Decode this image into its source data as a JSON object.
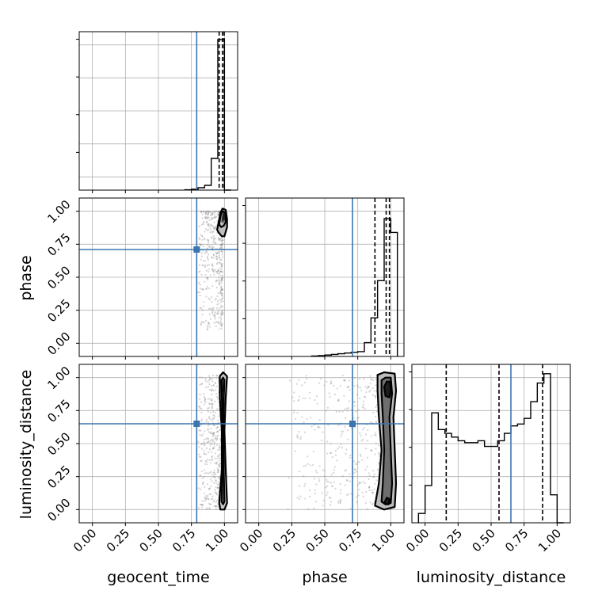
{
  "chart_data": {
    "type": "corner",
    "parameters": [
      "geocent_time",
      "phase",
      "luminosity_distance"
    ],
    "axis_labels": {
      "x": [
        "geocent_time",
        "phase",
        "luminosity_distance"
      ],
      "y": [
        "",
        "phase",
        "luminosity_distance"
      ]
    },
    "xlim": [
      -0.1,
      1.1
    ],
    "ylim": [
      -0.1,
      1.1
    ],
    "ticks": [
      0.0,
      0.25,
      0.5,
      0.75,
      1.0
    ],
    "tick_labels": [
      "0.00",
      "0.25",
      "0.50",
      "0.75",
      "1.00"
    ],
    "grid": true,
    "injection": {
      "geocent_time": 0.79,
      "phase": 0.71,
      "luminosity_distance": 0.65
    },
    "quantiles": {
      "geocent_time": [
        0.96,
        0.985,
        0.998
      ],
      "phase": [
        0.88,
        0.965,
        0.99
      ],
      "luminosity_distance": [
        0.16,
        0.56,
        0.89
      ]
    },
    "histograms": {
      "geocent_time": {
        "bin_edges": [
          0.7,
          0.75,
          0.8,
          0.85,
          0.9,
          0.95,
          1.0,
          1.05
        ],
        "counts": [
          0.2,
          0.5,
          1.5,
          3.0,
          20.0,
          95.0,
          0.0
        ],
        "ylim": [
          0,
          100
        ]
      },
      "phase": {
        "bin_edges": [
          0.4,
          0.45,
          0.5,
          0.55,
          0.6,
          0.65,
          0.7,
          0.75,
          0.8,
          0.85,
          0.9,
          0.95,
          1.0,
          1.05
        ],
        "counts": [
          0.3,
          0.6,
          1.0,
          1.5,
          2.0,
          2.5,
          3.0,
          3.5,
          10.0,
          28.0,
          55.0,
          100.0,
          90.0
        ],
        "ylim": [
          0,
          115
        ]
      },
      "luminosity_distance": {
        "bin_edges": [
          -0.05,
          0.0,
          0.05,
          0.1,
          0.15,
          0.2,
          0.25,
          0.3,
          0.35,
          0.4,
          0.45,
          0.5,
          0.55,
          0.6,
          0.65,
          0.7,
          0.75,
          0.8,
          0.85,
          0.9,
          0.95,
          1.0,
          1.05
        ],
        "counts": [
          0.5,
          2.0,
          5.9,
          5.0,
          4.8,
          4.6,
          4.4,
          4.3,
          4.3,
          4.4,
          4.1,
          4.1,
          4.4,
          4.8,
          5.2,
          5.3,
          5.6,
          6.5,
          7.5,
          8.0,
          1.5,
          0.0
        ],
        "ylim": [
          0,
          8.5
        ]
      }
    },
    "joint_densities": [
      {
        "x": "geocent_time",
        "y": "phase",
        "contours": [
          [
            [
              0.945,
              0.86
            ],
            [
              0.97,
              0.99
            ],
            [
              0.985,
              1.02
            ],
            [
              1.01,
              1.01
            ],
            [
              1.02,
              0.94
            ],
            [
              1.02,
              0.88
            ],
            [
              1.0,
              0.81
            ],
            [
              0.98,
              0.81
            ],
            [
              0.955,
              0.84
            ]
          ],
          [
            [
              0.96,
              0.9
            ],
            [
              0.975,
              0.985
            ],
            [
              0.99,
              1.0
            ],
            [
              1.005,
              0.99
            ],
            [
              1.01,
              0.92
            ],
            [
              0.995,
              0.89
            ],
            [
              0.975,
              0.88
            ]
          ]
        ],
        "fill_regions": [
          {
            "shade": "#bdbdbd",
            "points": [
              [
                0.945,
                0.86
              ],
              [
                0.97,
                0.99
              ],
              [
                0.985,
                1.02
              ],
              [
                1.01,
                1.01
              ],
              [
                1.02,
                0.94
              ],
              [
                1.02,
                0.88
              ],
              [
                1.0,
                0.81
              ],
              [
                0.98,
                0.81
              ],
              [
                0.955,
                0.84
              ]
            ]
          },
          {
            "shade": "#5a5a5a",
            "points": [
              [
                0.975,
                0.92
              ],
              [
                0.985,
                0.99
              ],
              [
                1.0,
                0.99
              ],
              [
                1.005,
                0.93
              ],
              [
                0.99,
                0.91
              ]
            ]
          },
          {
            "shade": "#1e1e1e",
            "points": [
              [
                0.982,
                0.935
              ],
              [
                0.988,
                0.985
              ],
              [
                0.998,
                0.985
              ],
              [
                1.0,
                0.94
              ],
              [
                0.99,
                0.925
              ]
            ]
          }
        ]
      },
      {
        "x": "geocent_time",
        "y": "luminosity_distance",
        "contours": [
          [
            [
              0.965,
              1.01
            ],
            [
              0.99,
              1.04
            ],
            [
              1.02,
              1.01
            ],
            [
              1.01,
              0.85
            ],
            [
              1.0,
              0.6
            ],
            [
              1.01,
              0.3
            ],
            [
              1.02,
              0.05
            ],
            [
              1.0,
              0.0
            ],
            [
              0.97,
              0.0
            ],
            [
              0.96,
              0.05
            ],
            [
              0.98,
              0.3
            ],
            [
              0.98,
              0.6
            ],
            [
              0.965,
              0.85
            ]
          ],
          [
            [
              0.978,
              0.98
            ],
            [
              0.99,
              1.0
            ],
            [
              1.0,
              0.98
            ],
            [
              0.995,
              0.85
            ],
            [
              0.99,
              0.6
            ],
            [
              0.995,
              0.3
            ],
            [
              1.0,
              0.06
            ],
            [
              0.99,
              0.04
            ],
            [
              0.978,
              0.06
            ],
            [
              0.985,
              0.3
            ],
            [
              0.988,
              0.6
            ],
            [
              0.98,
              0.85
            ]
          ]
        ],
        "fill_regions": [
          {
            "shade": "#c8c8c8",
            "points": [
              [
                0.965,
                1.01
              ],
              [
                0.99,
                1.04
              ],
              [
                1.02,
                1.01
              ],
              [
                1.01,
                0.85
              ],
              [
                1.0,
                0.6
              ],
              [
                1.01,
                0.3
              ],
              [
                1.02,
                0.05
              ],
              [
                1.0,
                0.0
              ],
              [
                0.97,
                0.0
              ],
              [
                0.96,
                0.05
              ],
              [
                0.98,
                0.3
              ],
              [
                0.98,
                0.6
              ],
              [
                0.965,
                0.85
              ]
            ]
          },
          {
            "shade": "#5a5a5a",
            "points": [
              [
                0.978,
                0.98
              ],
              [
                0.99,
                1.0
              ],
              [
                1.0,
                0.98
              ],
              [
                0.995,
                0.85
              ],
              [
                0.99,
                0.6
              ],
              [
                0.995,
                0.3
              ],
              [
                1.0,
                0.06
              ],
              [
                0.99,
                0.04
              ],
              [
                0.978,
                0.06
              ],
              [
                0.985,
                0.3
              ],
              [
                0.988,
                0.6
              ],
              [
                0.98,
                0.85
              ]
            ]
          },
          {
            "shade": "#1a1a1a",
            "points": [
              [
                0.985,
                0.9
              ],
              [
                0.99,
                0.98
              ],
              [
                0.996,
                0.95
              ],
              [
                0.992,
                0.88
              ]
            ]
          }
        ]
      },
      {
        "x": "phase",
        "y": "luminosity_distance",
        "contours": [
          [
            [
              0.9,
              1.02
            ],
            [
              0.95,
              1.04
            ],
            [
              1.03,
              1.03
            ],
            [
              1.04,
              0.9
            ],
            [
              1.02,
              0.7
            ],
            [
              1.03,
              0.45
            ],
            [
              1.04,
              0.2
            ],
            [
              1.03,
              0.02
            ],
            [
              0.95,
              0.0
            ],
            [
              0.88,
              0.03
            ],
            [
              0.91,
              0.2
            ],
            [
              0.93,
              0.45
            ],
            [
              0.91,
              0.7
            ],
            [
              0.9,
              0.9
            ]
          ],
          [
            [
              0.93,
              0.98
            ],
            [
              0.96,
              1.0
            ],
            [
              1.0,
              1.0
            ],
            [
              1.01,
              0.88
            ],
            [
              0.99,
              0.7
            ],
            [
              1.0,
              0.45
            ],
            [
              1.01,
              0.2
            ],
            [
              1.0,
              0.05
            ],
            [
              0.96,
              0.04
            ],
            [
              0.93,
              0.06
            ],
            [
              0.94,
              0.2
            ],
            [
              0.95,
              0.45
            ],
            [
              0.94,
              0.7
            ],
            [
              0.93,
              0.88
            ]
          ],
          [
            [
              0.95,
              0.93
            ],
            [
              0.97,
              0.97
            ],
            [
              0.995,
              0.97
            ],
            [
              1.0,
              0.9
            ],
            [
              0.99,
              0.85
            ],
            [
              0.96,
              0.86
            ]
          ],
          [
            [
              0.955,
              0.06
            ],
            [
              0.97,
              0.09
            ],
            [
              0.99,
              0.08
            ],
            [
              0.985,
              0.04
            ],
            [
              0.96,
              0.04
            ]
          ]
        ],
        "fill_regions": [
          {
            "shade": "#bdbdbd",
            "points": [
              [
                0.9,
                1.02
              ],
              [
                0.95,
                1.04
              ],
              [
                1.03,
                1.03
              ],
              [
                1.04,
                0.9
              ],
              [
                1.02,
                0.7
              ],
              [
                1.03,
                0.45
              ],
              [
                1.04,
                0.2
              ],
              [
                1.03,
                0.02
              ],
              [
                0.95,
                0.0
              ],
              [
                0.88,
                0.03
              ],
              [
                0.91,
                0.2
              ],
              [
                0.93,
                0.45
              ],
              [
                0.91,
                0.7
              ],
              [
                0.9,
                0.9
              ]
            ]
          },
          {
            "shade": "#6e6e6e",
            "points": [
              [
                0.93,
                0.98
              ],
              [
                0.96,
                1.0
              ],
              [
                1.0,
                1.0
              ],
              [
                1.01,
                0.88
              ],
              [
                0.99,
                0.7
              ],
              [
                1.0,
                0.45
              ],
              [
                1.01,
                0.2
              ],
              [
                1.0,
                0.05
              ],
              [
                0.96,
                0.04
              ],
              [
                0.93,
                0.06
              ],
              [
                0.94,
                0.2
              ],
              [
                0.95,
                0.45
              ],
              [
                0.94,
                0.7
              ],
              [
                0.93,
                0.88
              ]
            ]
          },
          {
            "shade": "#1e1e1e",
            "points": [
              [
                0.95,
                0.93
              ],
              [
                0.97,
                0.97
              ],
              [
                0.995,
                0.97
              ],
              [
                1.0,
                0.9
              ],
              [
                0.99,
                0.85
              ],
              [
                0.96,
                0.86
              ]
            ]
          },
          {
            "shade": "#1e1e1e",
            "points": [
              [
                0.955,
                0.06
              ],
              [
                0.97,
                0.09
              ],
              [
                0.99,
                0.08
              ],
              [
                0.985,
                0.04
              ],
              [
                0.96,
                0.04
              ]
            ]
          }
        ]
      }
    ],
    "colors": {
      "injection": "#3b76af",
      "histogram": "#000000",
      "quantile": "#000000",
      "grid": "#b0b0b0",
      "samples": "#888888"
    }
  }
}
